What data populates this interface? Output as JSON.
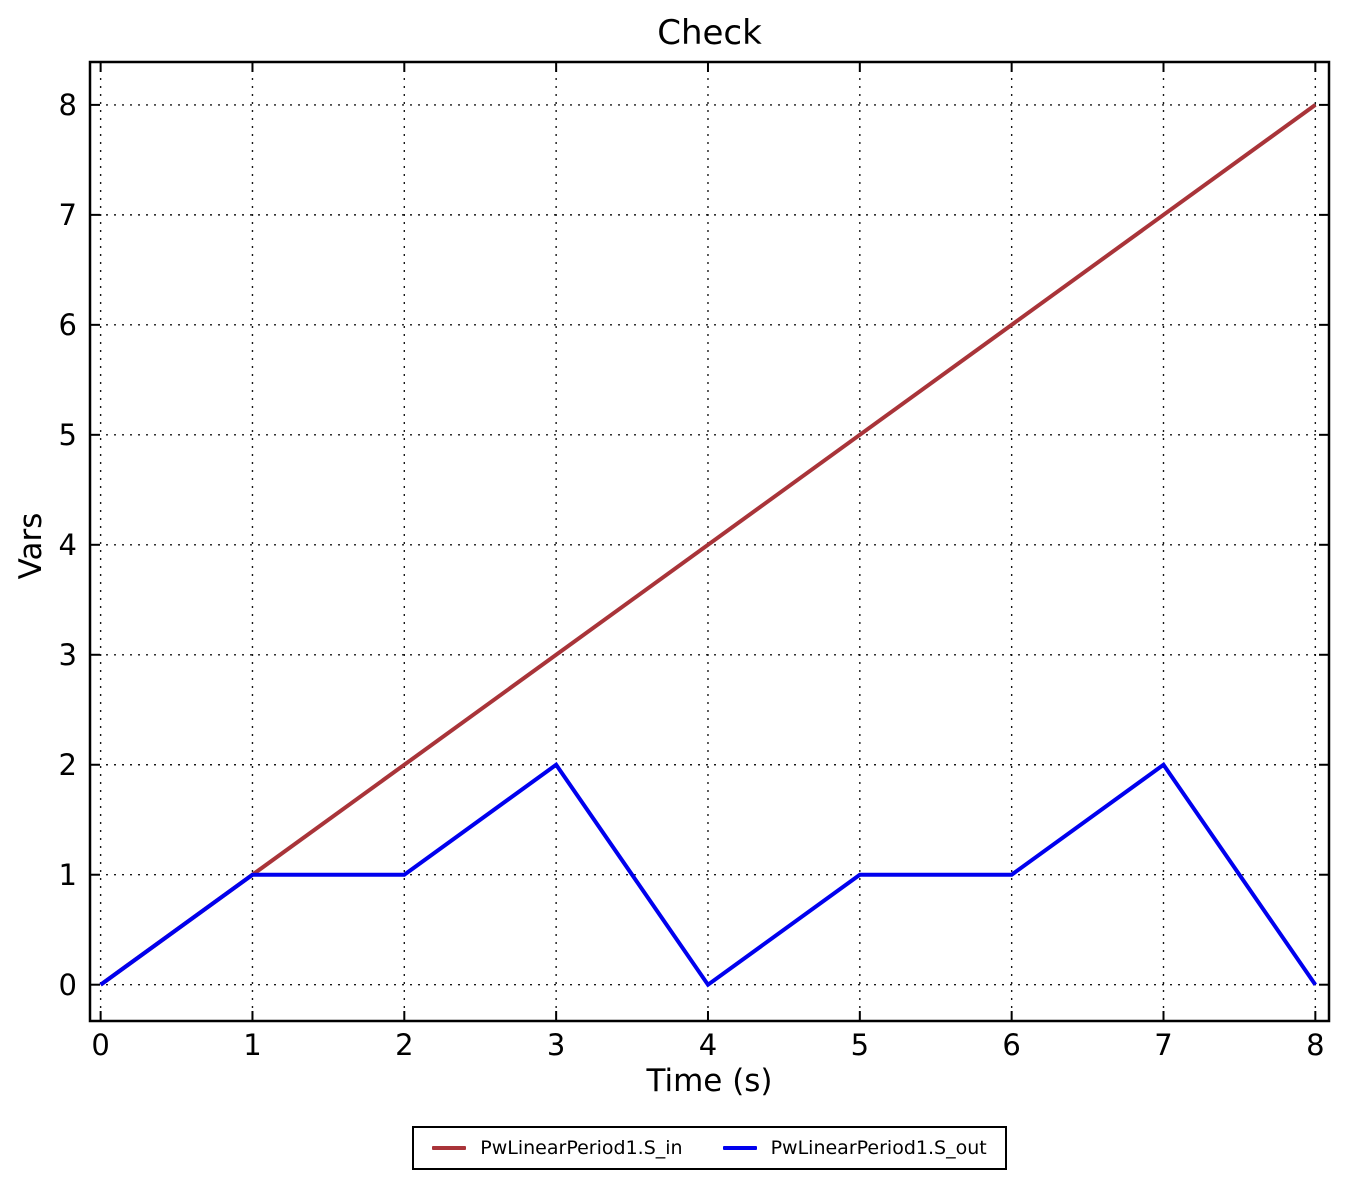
{
  "figure": {
    "background": "#ffffff",
    "frame_color": "#000000",
    "grid_color": "#000000"
  },
  "chart_data": {
    "type": "line",
    "title": "Check",
    "xlabel": "Time (s)",
    "ylabel": "Vars",
    "xlim": [
      -0.07,
      8.09
    ],
    "ylim": [
      -0.33,
      8.39
    ],
    "xticks": [
      0,
      1,
      2,
      3,
      4,
      5,
      6,
      7,
      8
    ],
    "yticks": [
      0,
      1,
      2,
      3,
      4,
      5,
      6,
      7,
      8
    ],
    "grid": true,
    "grid_style": "dotted",
    "legend_position": "bottom-center",
    "series": [
      {
        "name": "PwLinearPeriod1.S_in",
        "color": "#a93439",
        "x": [
          0,
          8
        ],
        "y": [
          0,
          8
        ]
      },
      {
        "name": "PwLinearPeriod1.S_out",
        "color": "#0000ee",
        "x": [
          0,
          1,
          2,
          3,
          4,
          5,
          6,
          7,
          8
        ],
        "y": [
          0,
          1,
          1,
          2,
          0,
          1,
          1,
          2,
          0
        ]
      }
    ]
  }
}
